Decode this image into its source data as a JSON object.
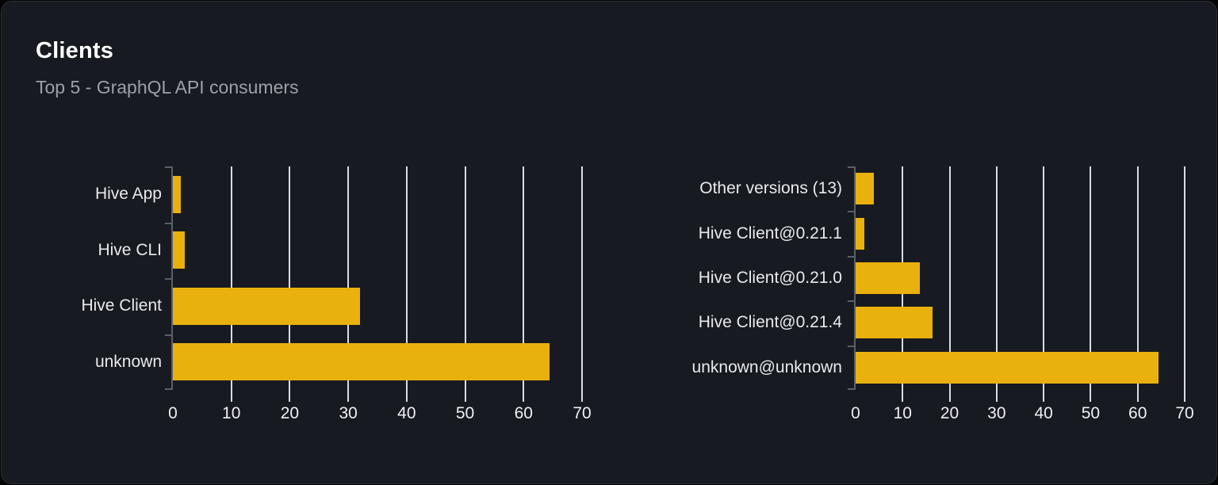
{
  "card": {
    "title": "Clients",
    "subtitle": "Top 5 - GraphQL API consumers"
  },
  "colors": {
    "page_bg": "#050505",
    "card_bg": "#171a20",
    "card_border": "#2b2e34",
    "title": "#ffffff",
    "subtitle": "#9ba1a8",
    "bar": "#e9b10e",
    "grid": "#d9dce2",
    "axis": "#5b5f66",
    "category_label": "#e8eaed",
    "tick_label": "#eef0f2"
  },
  "chart_data": [
    {
      "type": "bar",
      "orientation": "horizontal",
      "title": "",
      "xlabel": "",
      "ylabel": "",
      "categories": [
        "Hive App",
        "Hive CLI",
        "Hive Client",
        "unknown"
      ],
      "values": [
        1.4,
        2.1,
        32,
        64.4
      ],
      "xticks": [
        0,
        10,
        20,
        30,
        40,
        50,
        60,
        70
      ],
      "xlim": [
        0,
        70
      ],
      "grid": true,
      "legend": "none"
    },
    {
      "type": "bar",
      "orientation": "horizontal",
      "title": "",
      "xlabel": "",
      "ylabel": "",
      "categories": [
        "Other versions (13)",
        "Hive Client@0.21.1",
        "Hive Client@0.21.0",
        "Hive Client@0.21.4",
        "unknown@unknown"
      ],
      "values": [
        3.8,
        1.8,
        13.6,
        16.3,
        64.4
      ],
      "xticks": [
        0,
        10,
        20,
        30,
        40,
        50,
        60,
        70
      ],
      "xlim": [
        0,
        70
      ],
      "grid": true,
      "legend": "none"
    }
  ]
}
